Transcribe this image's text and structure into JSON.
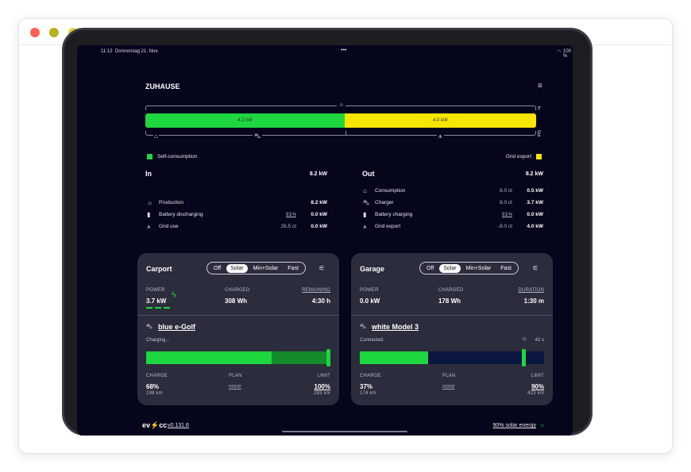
{
  "status": {
    "time": "11:12",
    "date": "Donnerstag 21. Nov.",
    "dots": "•••",
    "battery": "100 %"
  },
  "header": {
    "title": "ZUHAUSE"
  },
  "energy_bar": {
    "self_value": "4.2 kW",
    "export_value": "4.0 kW",
    "in_label": "In",
    "out_label": "Out",
    "self_fraction": 0.51,
    "export_fraction": 0.49
  },
  "legend": {
    "self": "Self-consumption",
    "export": "Grid export"
  },
  "in": {
    "title": "In",
    "total": "8.2 kW",
    "rows": [
      {
        "icon": "sun-icon",
        "label": "Production",
        "extra": "",
        "value": "8.2 kW"
      },
      {
        "icon": "battery-icon",
        "label": "Battery discharging",
        "extra": "81%",
        "value": "0.0 kW"
      },
      {
        "icon": "tower-icon",
        "label": "Grid use",
        "extra": "26.5 ct",
        "value": "0.0 kW"
      }
    ]
  },
  "out": {
    "title": "Out",
    "total": "8.2 kW",
    "rows": [
      {
        "icon": "home-icon",
        "label": "Consumption",
        "extra": "8.0 ct",
        "value": "0.5 kW"
      },
      {
        "icon": "car-icon",
        "label": "Charger",
        "extra": "8.0 ct",
        "value": "3.7 kW"
      },
      {
        "icon": "battery-icon",
        "label": "Battery charging",
        "extra": "81%",
        "value": "0.0 kW"
      },
      {
        "icon": "tower-icon",
        "label": "Grid export",
        "extra": "-8.0 ct",
        "value": "4.0 kW"
      }
    ]
  },
  "modes": [
    "Off",
    "Solar",
    "Min+Solar",
    "Fast"
  ],
  "carport": {
    "title": "Carport",
    "mode": "Solar",
    "power_label": "POWER",
    "power": "3.7 kW",
    "charged_label": "CHARGED",
    "charged": "308 Wh",
    "remaining_label": "REMAINING",
    "remaining": "4:30 h",
    "vehicle": "blue e-Golf",
    "status": "Charging...",
    "charge_label": "CHARGE",
    "charge": "68%",
    "range": "198 km",
    "plan_label": "PLAN",
    "plan": "none",
    "limit_label": "LIMIT",
    "limit": "100%",
    "limit_range": "293 km",
    "soc": 0.68,
    "limit_fraction": 1.0
  },
  "garage": {
    "title": "Garage",
    "mode": "Solar",
    "power_label": "POWER",
    "power": "0.0 kW",
    "charged_label": "CHARGED",
    "charged": "178 Wh",
    "duration_label": "DURATION",
    "duration": "1:30 m",
    "vehicle": "white Model 3",
    "status": "Connected.",
    "timer": "42 s",
    "charge_label": "CHARGE",
    "charge": "37%",
    "range": "174 km",
    "plan_label": "PLAN",
    "plan": "none",
    "limit_label": "LIMIT",
    "limit": "90%",
    "limit_range": "423 km",
    "soc": 0.37,
    "limit_fraction": 0.9
  },
  "footer": {
    "brand": "ev⚡cc",
    "version": "v0.131.6",
    "solar": "90% solar energy"
  },
  "colors": {
    "green": "#1ed640",
    "yellow": "#f7e600",
    "background": "#05051c",
    "card": "#2b2c3c"
  }
}
